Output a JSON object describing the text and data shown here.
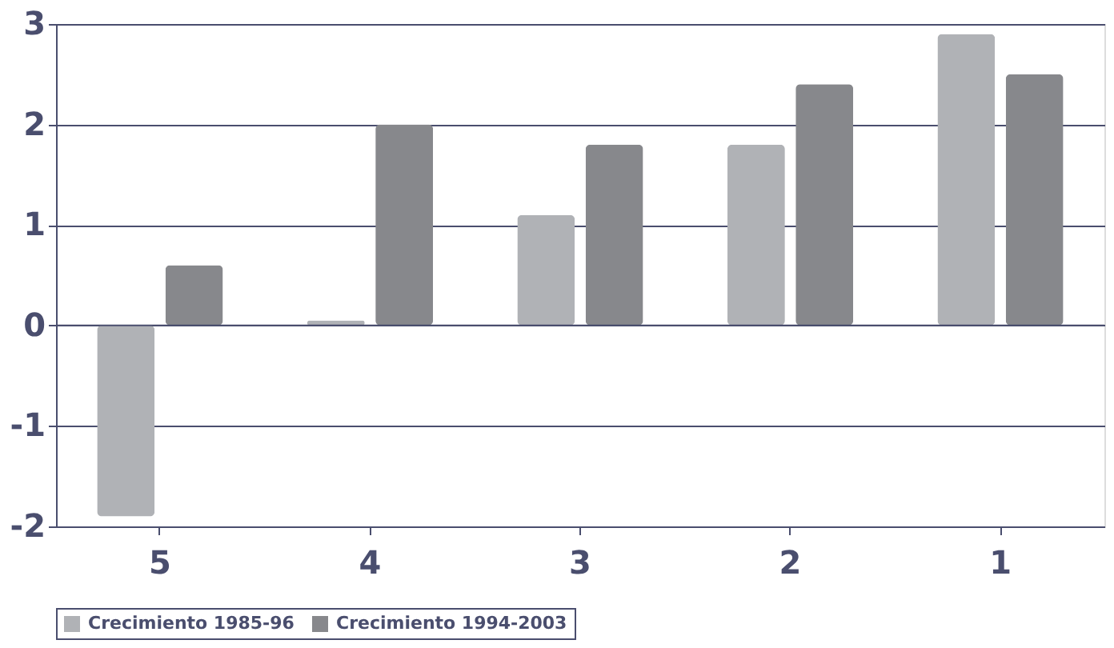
{
  "chart_data": {
    "type": "bar",
    "categories": [
      "5",
      "4",
      "3",
      "2",
      "1"
    ],
    "series": [
      {
        "name": "Crecimiento 1985-96",
        "color": "#b0b2b6",
        "values": [
          -1.9,
          0.05,
          1.1,
          1.8,
          2.9
        ]
      },
      {
        "name": "Crecimiento 1994-2003",
        "color": "#87888c",
        "values": [
          0.6,
          2.0,
          1.8,
          2.4,
          2.5
        ]
      }
    ],
    "ylim": [
      -2,
      3
    ],
    "yticks": [
      -2,
      -1,
      0,
      1,
      2,
      3
    ],
    "grid": "y",
    "legend": "bottom"
  }
}
